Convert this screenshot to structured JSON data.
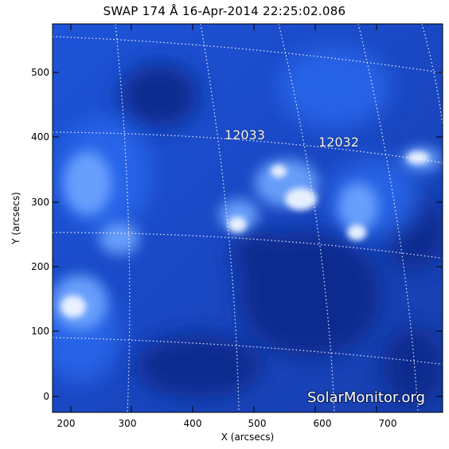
{
  "title": "SWAP 174 Å 16-Apr-2014 22:25:02.086",
  "x_axis": {
    "label": "X (arcsecs)",
    "ticks": [
      "200",
      "300",
      "400",
      "500",
      "600",
      "700"
    ]
  },
  "y_axis": {
    "label": "Y (arcsecs)",
    "ticks": [
      "0",
      "100",
      "200",
      "300",
      "400",
      "500"
    ]
  },
  "active_regions": [
    {
      "label": "12033"
    },
    {
      "label": "12032"
    }
  ],
  "watermark": "SolarMonitor.org",
  "colors": {
    "background": "#ffffff",
    "image_dark": "#0a1e78",
    "image_mid": "#1e5be6",
    "image_bright": "#ffffff"
  }
}
